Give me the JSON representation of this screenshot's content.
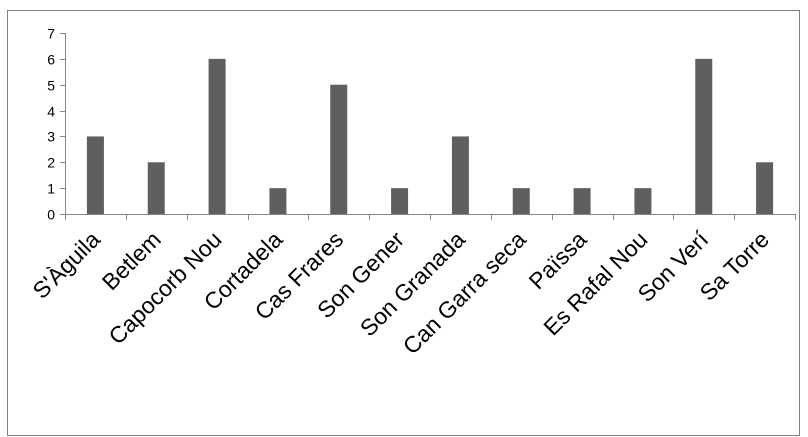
{
  "chart_data": {
    "type": "bar",
    "categories": [
      "S'Àguila",
      "Betlem",
      "Capocorb Nou",
      "Cortadela",
      "Cas Frares",
      "Son Gener",
      "Son Granada",
      "Can Garra seca",
      "Païssa",
      "Es Rafal Nou",
      "Son Verí",
      "Sa Torre"
    ],
    "values": [
      3,
      2,
      6,
      1,
      5,
      1,
      3,
      1,
      1,
      1,
      6,
      2
    ],
    "title": "",
    "xlabel": "",
    "ylabel": "",
    "ylim": [
      0,
      7
    ],
    "yticks": [
      0,
      1,
      2,
      3,
      4,
      5,
      6,
      7
    ],
    "grid": false,
    "legend": "none",
    "bar_color": "#5f5f5f",
    "border_color": "#7f7f7f"
  }
}
